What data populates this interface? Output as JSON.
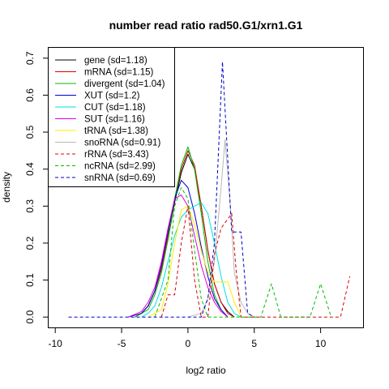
{
  "chart_data": {
    "type": "line",
    "title": "number read ratio rad50.G1/xrn1.G1",
    "xlabel": "log2 ratio",
    "ylabel": "density",
    "xlim": [
      -10.5,
      13.2
    ],
    "ylim": [
      -0.028,
      0.728
    ],
    "xticks": [
      -10,
      -5,
      0,
      5,
      10
    ],
    "yticks": [
      0.0,
      0.1,
      0.2,
      0.3,
      0.4,
      0.5,
      0.6,
      0.7
    ],
    "legend_position": "top-left",
    "grid": false,
    "series": [
      {
        "name": "gene (sd=1.18)",
        "color": "#000000",
        "dash": "solid",
        "points": [
          [
            -4,
            0
          ],
          [
            -3.5,
            0.01
          ],
          [
            -3,
            0.03
          ],
          [
            -2.5,
            0.07
          ],
          [
            -2,
            0.13
          ],
          [
            -1.5,
            0.21
          ],
          [
            -1,
            0.31
          ],
          [
            -0.5,
            0.39
          ],
          [
            0,
            0.44
          ],
          [
            0.5,
            0.4
          ],
          [
            1,
            0.3
          ],
          [
            1.5,
            0.18
          ],
          [
            2,
            0.09
          ],
          [
            2.5,
            0.04
          ],
          [
            3,
            0.015
          ],
          [
            3.5,
            0
          ]
        ]
      },
      {
        "name": "mRNA (sd=1.15)",
        "color": "#dd0000",
        "dash": "solid",
        "points": [
          [
            -4,
            0
          ],
          [
            -3.5,
            0.01
          ],
          [
            -3,
            0.03
          ],
          [
            -2.5,
            0.07
          ],
          [
            -2,
            0.13
          ],
          [
            -1.5,
            0.22
          ],
          [
            -1,
            0.32
          ],
          [
            -0.5,
            0.4
          ],
          [
            0,
            0.45
          ],
          [
            0.5,
            0.41
          ],
          [
            1,
            0.3
          ],
          [
            1.5,
            0.18
          ],
          [
            2,
            0.09
          ],
          [
            2.5,
            0.04
          ],
          [
            3,
            0.01
          ],
          [
            3.5,
            0
          ]
        ]
      },
      {
        "name": "divergent (sd=1.04)",
        "color": "#00bb00",
        "dash": "solid",
        "points": [
          [
            -4,
            0
          ],
          [
            -3,
            0.02
          ],
          [
            -2.5,
            0.06
          ],
          [
            -2,
            0.12
          ],
          [
            -1.5,
            0.21
          ],
          [
            -1,
            0.32
          ],
          [
            -0.5,
            0.41
          ],
          [
            0,
            0.46
          ],
          [
            0.5,
            0.4
          ],
          [
            1,
            0.28
          ],
          [
            1.5,
            0.15
          ],
          [
            2,
            0.06
          ],
          [
            2.5,
            0.02
          ],
          [
            3,
            0
          ]
        ]
      },
      {
        "name": "XUT (sd=1.2)",
        "color": "#0000cc",
        "dash": "solid",
        "points": [
          [
            -4.5,
            0
          ],
          [
            -3.5,
            0.01
          ],
          [
            -3,
            0.03
          ],
          [
            -2.5,
            0.07
          ],
          [
            -2,
            0.14
          ],
          [
            -1.5,
            0.23
          ],
          [
            -1,
            0.32
          ],
          [
            -0.5,
            0.37
          ],
          [
            0,
            0.35
          ],
          [
            0.5,
            0.28
          ],
          [
            1,
            0.19
          ],
          [
            1.5,
            0.11
          ],
          [
            2,
            0.05
          ],
          [
            2.5,
            0.02
          ],
          [
            3,
            0
          ]
        ]
      },
      {
        "name": "CUT (sd=1.18)",
        "color": "#00e0e0",
        "dash": "solid",
        "points": [
          [
            -3.5,
            0
          ],
          [
            -3,
            0.01
          ],
          [
            -2.5,
            0.03
          ],
          [
            -2,
            0.08
          ],
          [
            -1.5,
            0.15
          ],
          [
            -1,
            0.22
          ],
          [
            -0.5,
            0.27
          ],
          [
            0,
            0.29
          ],
          [
            0.5,
            0.3
          ],
          [
            1,
            0.31
          ],
          [
            1.5,
            0.28
          ],
          [
            2,
            0.2
          ],
          [
            2.5,
            0.11
          ],
          [
            3,
            0.04
          ],
          [
            3.5,
            0.01
          ],
          [
            4,
            0
          ]
        ]
      },
      {
        "name": "SUT (sd=1.16)",
        "color": "#dd00dd",
        "dash": "solid",
        "points": [
          [
            -4.5,
            0
          ],
          [
            -3.5,
            0.015
          ],
          [
            -3,
            0.04
          ],
          [
            -2.5,
            0.08
          ],
          [
            -2,
            0.15
          ],
          [
            -1.5,
            0.24
          ],
          [
            -1,
            0.32
          ],
          [
            -0.5,
            0.33
          ],
          [
            0,
            0.3
          ],
          [
            0.5,
            0.22
          ],
          [
            1,
            0.14
          ],
          [
            1.5,
            0.08
          ],
          [
            2,
            0.04
          ],
          [
            2.5,
            0.015
          ],
          [
            3,
            0
          ]
        ]
      },
      {
        "name": "tRNA (sd=1.38)",
        "color": "#ffee00",
        "dash": "solid",
        "points": [
          [
            -3,
            0
          ],
          [
            -2,
            0.02
          ],
          [
            -1.5,
            0.09
          ],
          [
            -1,
            0.2
          ],
          [
            -0.5,
            0.29
          ],
          [
            0,
            0.3
          ],
          [
            0.5,
            0.25
          ],
          [
            1,
            0.18
          ],
          [
            1.5,
            0.12
          ],
          [
            2,
            0.095
          ],
          [
            2.5,
            0.095
          ],
          [
            3,
            0.095
          ],
          [
            3.5,
            0.04
          ],
          [
            4,
            0
          ]
        ]
      },
      {
        "name": "snoRNA (sd=0.91)",
        "color": "#b8b8b8",
        "dash": "solid",
        "points": [
          [
            0,
            0
          ],
          [
            1,
            0.01
          ],
          [
            1.5,
            0.05
          ],
          [
            2,
            0.15
          ],
          [
            2.5,
            0.35
          ],
          [
            2.8,
            0.48
          ],
          [
            3.2,
            0.3
          ],
          [
            3.5,
            0.12
          ],
          [
            4,
            0.04
          ],
          [
            4.5,
            0.01
          ],
          [
            5,
            0
          ]
        ]
      },
      {
        "name": "rRNA (sd=3.43)",
        "color": "#dd0000",
        "dash": "dashed",
        "points": [
          [
            -2,
            0
          ],
          [
            -1.5,
            0.06
          ],
          [
            -1,
            0.06
          ],
          [
            -0.5,
            0.2
          ],
          [
            0,
            0.3
          ],
          [
            0.5,
            0.1
          ],
          [
            1,
            0
          ],
          [
            1.5,
            0
          ],
          [
            2,
            0.17
          ],
          [
            2.5,
            0.24
          ],
          [
            3.3,
            0.28
          ],
          [
            3.6,
            0.14
          ],
          [
            4,
            0
          ],
          [
            11,
            0
          ],
          [
            11.5,
            0
          ],
          [
            12.2,
            0.11
          ]
        ]
      },
      {
        "name": "ncRNA (sd=2.99)",
        "color": "#00bb00",
        "dash": "dashed",
        "points": [
          [
            -2.5,
            0
          ],
          [
            -2,
            0.05
          ],
          [
            -1.5,
            0.1
          ],
          [
            -1,
            0.3
          ],
          [
            -0.5,
            0.35
          ],
          [
            0,
            0.32
          ],
          [
            0.5,
            0.18
          ],
          [
            1,
            0.05
          ],
          [
            1.5,
            0
          ],
          [
            5.5,
            0
          ],
          [
            6.3,
            0.09
          ],
          [
            7,
            0
          ],
          [
            9.2,
            0
          ],
          [
            10,
            0.09
          ],
          [
            10.8,
            0
          ]
        ]
      },
      {
        "name": "snRNA (sd=0.69)",
        "color": "#0000cc",
        "dash": "dashed",
        "points": [
          [
            -9,
            0
          ],
          [
            -8,
            0
          ],
          [
            -7,
            0
          ],
          [
            -6,
            0
          ],
          [
            -5,
            0
          ],
          [
            -4,
            0
          ],
          [
            -3,
            0
          ],
          [
            -2,
            0
          ],
          [
            -1,
            0
          ],
          [
            0,
            0
          ],
          [
            1,
            0
          ],
          [
            1.5,
            0.05
          ],
          [
            2,
            0.2
          ],
          [
            2.6,
            0.69
          ],
          [
            3.3,
            0.23
          ],
          [
            4,
            0.23
          ],
          [
            4.5,
            0.01
          ],
          [
            5,
            0
          ]
        ]
      }
    ]
  }
}
